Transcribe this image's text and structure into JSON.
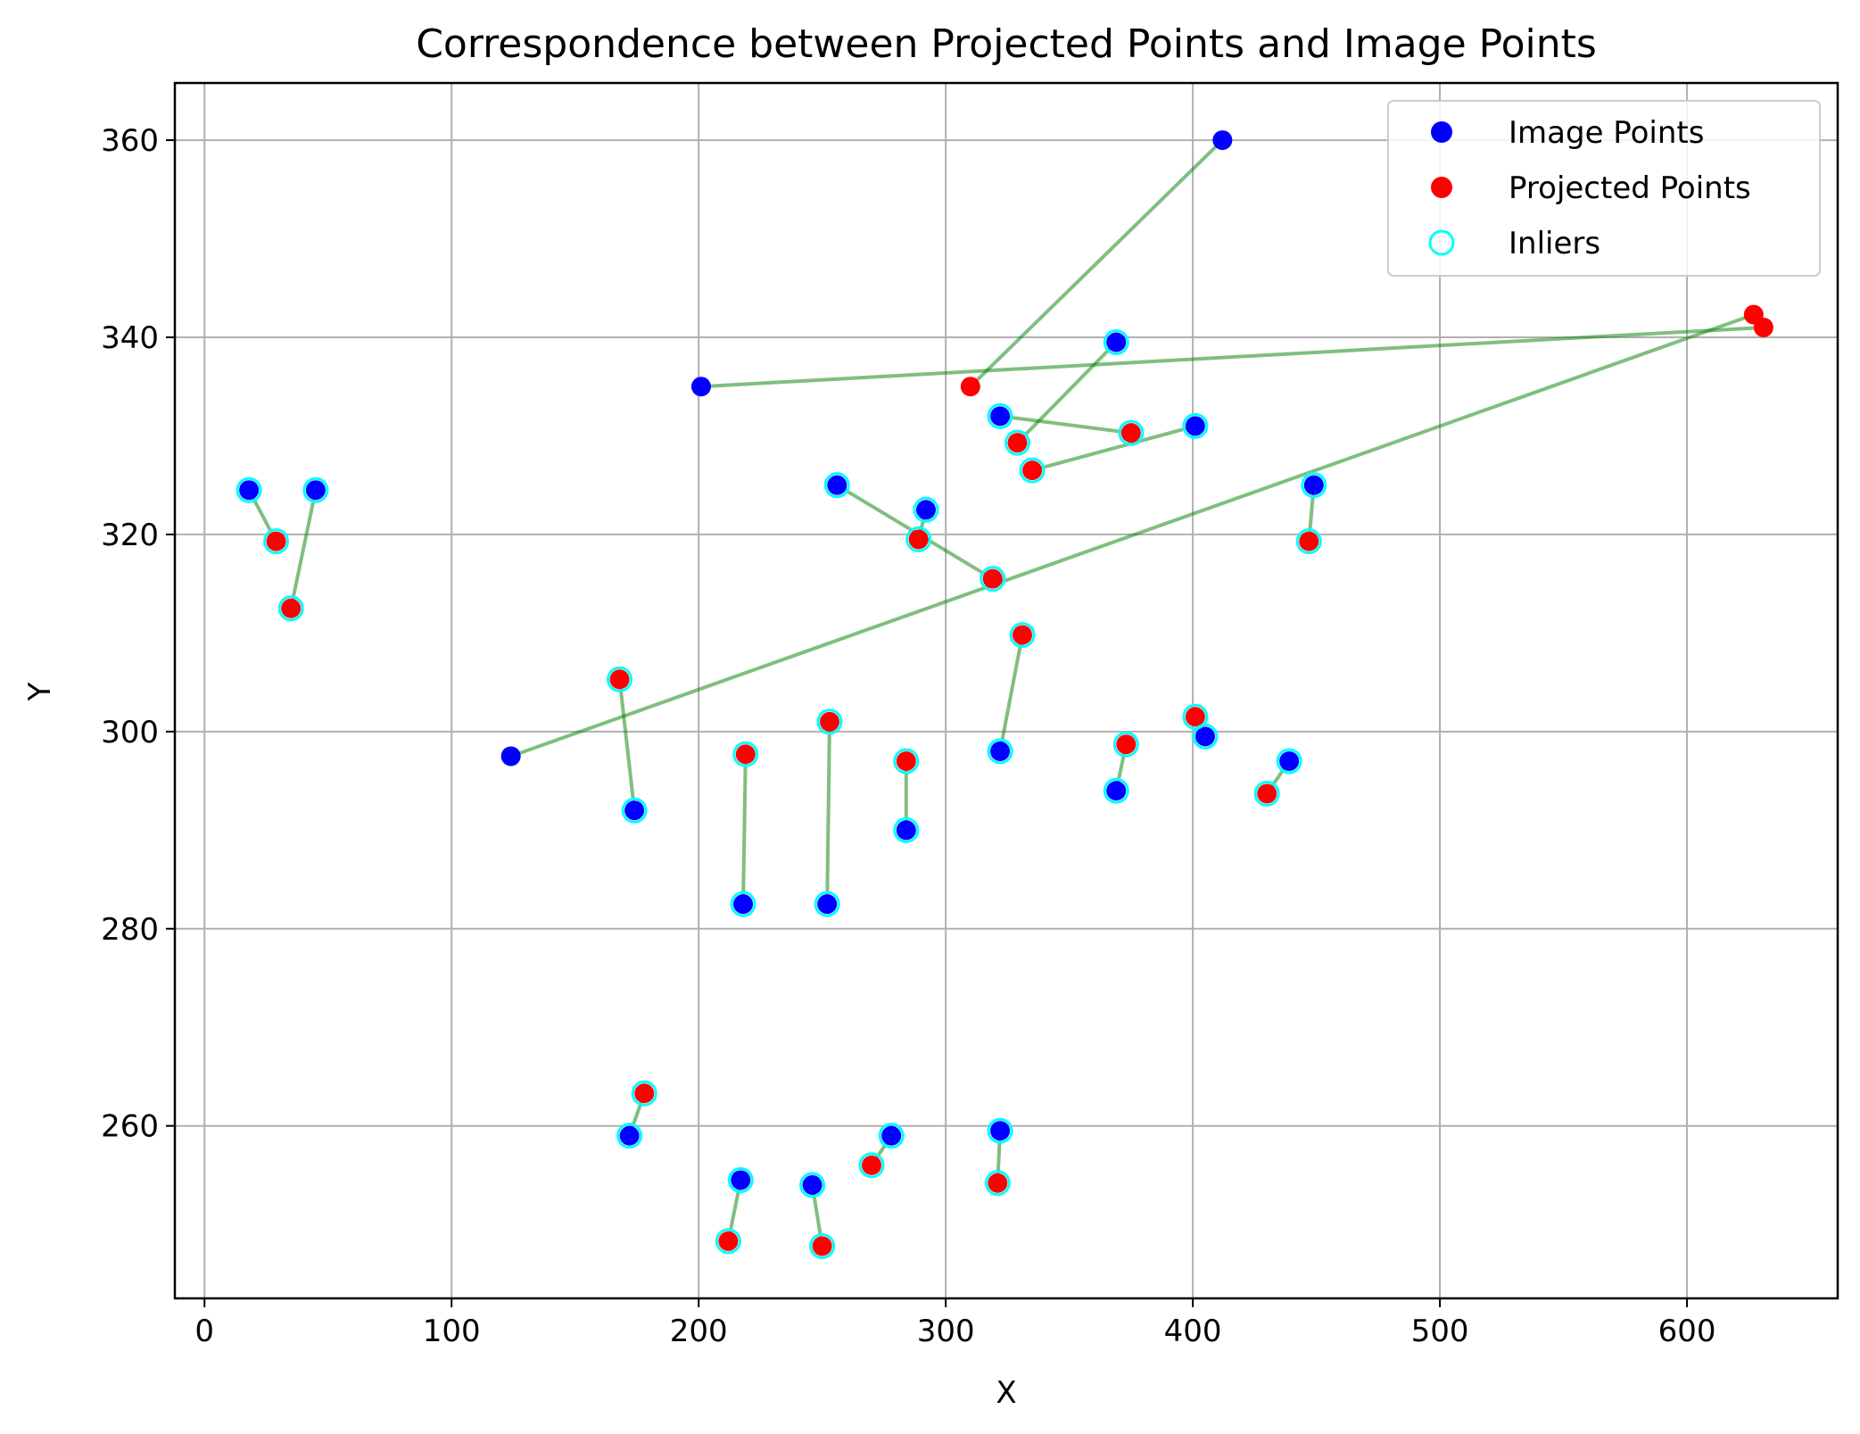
{
  "chart_data": {
    "type": "scatter",
    "title": "Correspondence between Projected Points and Image Points",
    "xlabel": "X",
    "ylabel": "Y",
    "xlim": [
      -12,
      661
    ],
    "ylim": [
      242.5,
      365.8
    ],
    "xticks": [
      0,
      100,
      200,
      300,
      400,
      500,
      600
    ],
    "yticks": [
      260,
      280,
      300,
      320,
      340,
      360
    ],
    "grid": true,
    "legend_position": "top-right",
    "colors": {
      "image": "#0000ff",
      "projected": "#ff0000",
      "inlier": "#00ffff",
      "line": "#008000"
    },
    "legend": [
      {
        "label": "Image Points",
        "kind": "image"
      },
      {
        "label": "Projected Points",
        "kind": "projected"
      },
      {
        "label": "Inliers",
        "kind": "inlier"
      }
    ],
    "correspondences": [
      {
        "image": [
          18,
          324.5
        ],
        "projected": [
          29,
          319.3
        ],
        "inlier": true
      },
      {
        "image": [
          45,
          324.5
        ],
        "projected": [
          35,
          312.5
        ],
        "inlier": true
      },
      {
        "image": [
          201,
          335
        ],
        "projected": [
          631,
          341
        ],
        "inlier": false
      },
      {
        "image": [
          412,
          360
        ],
        "projected": [
          310,
          335
        ],
        "inlier": false
      },
      {
        "image": [
          124,
          297.5
        ],
        "projected": [
          627,
          342.3
        ],
        "inlier": false
      },
      {
        "image": [
          256,
          325
        ],
        "projected": [
          319,
          315.5
        ],
        "inlier": true
      },
      {
        "image": [
          292,
          322.5
        ],
        "projected": [
          289,
          319.5
        ],
        "inlier": true
      },
      {
        "image": [
          369,
          339.5
        ],
        "projected": [
          329,
          329.3
        ],
        "inlier": true
      },
      {
        "image": [
          322,
          332
        ],
        "projected": [
          375,
          330.3
        ],
        "inlier": true
      },
      {
        "image": [
          401,
          331
        ],
        "projected": [
          335,
          326.5
        ],
        "inlier": true
      },
      {
        "image": [
          449,
          325
        ],
        "projected": [
          447,
          319.3
        ],
        "inlier": true
      },
      {
        "image": [
          322,
          298
        ],
        "projected": [
          331,
          309.8
        ],
        "inlier": true
      },
      {
        "image": [
          174,
          292
        ],
        "projected": [
          168,
          305.3
        ],
        "inlier": true
      },
      {
        "image": [
          218,
          282.5
        ],
        "projected": [
          219,
          297.7
        ],
        "inlier": true
      },
      {
        "image": [
          252,
          282.5
        ],
        "projected": [
          253,
          301
        ],
        "inlier": true
      },
      {
        "image": [
          284,
          290
        ],
        "projected": [
          284,
          297
        ],
        "inlier": true
      },
      {
        "image": [
          369,
          294
        ],
        "projected": [
          373,
          298.7
        ],
        "inlier": true
      },
      {
        "image": [
          405,
          299.5
        ],
        "projected": [
          401,
          301.5
        ],
        "inlier": true
      },
      {
        "image": [
          439,
          297
        ],
        "projected": [
          430,
          293.7
        ],
        "inlier": true
      },
      {
        "image": [
          172,
          259
        ],
        "projected": [
          178,
          263.3
        ],
        "inlier": true
      },
      {
        "image": [
          217,
          254.5
        ],
        "projected": [
          212,
          248.3
        ],
        "inlier": true
      },
      {
        "image": [
          246,
          254
        ],
        "projected": [
          250,
          247.8
        ],
        "inlier": true
      },
      {
        "image": [
          278,
          259
        ],
        "projected": [
          270,
          256
        ],
        "inlier": true
      },
      {
        "image": [
          322,
          259.5
        ],
        "projected": [
          321,
          254.2
        ],
        "inlier": true
      }
    ]
  }
}
